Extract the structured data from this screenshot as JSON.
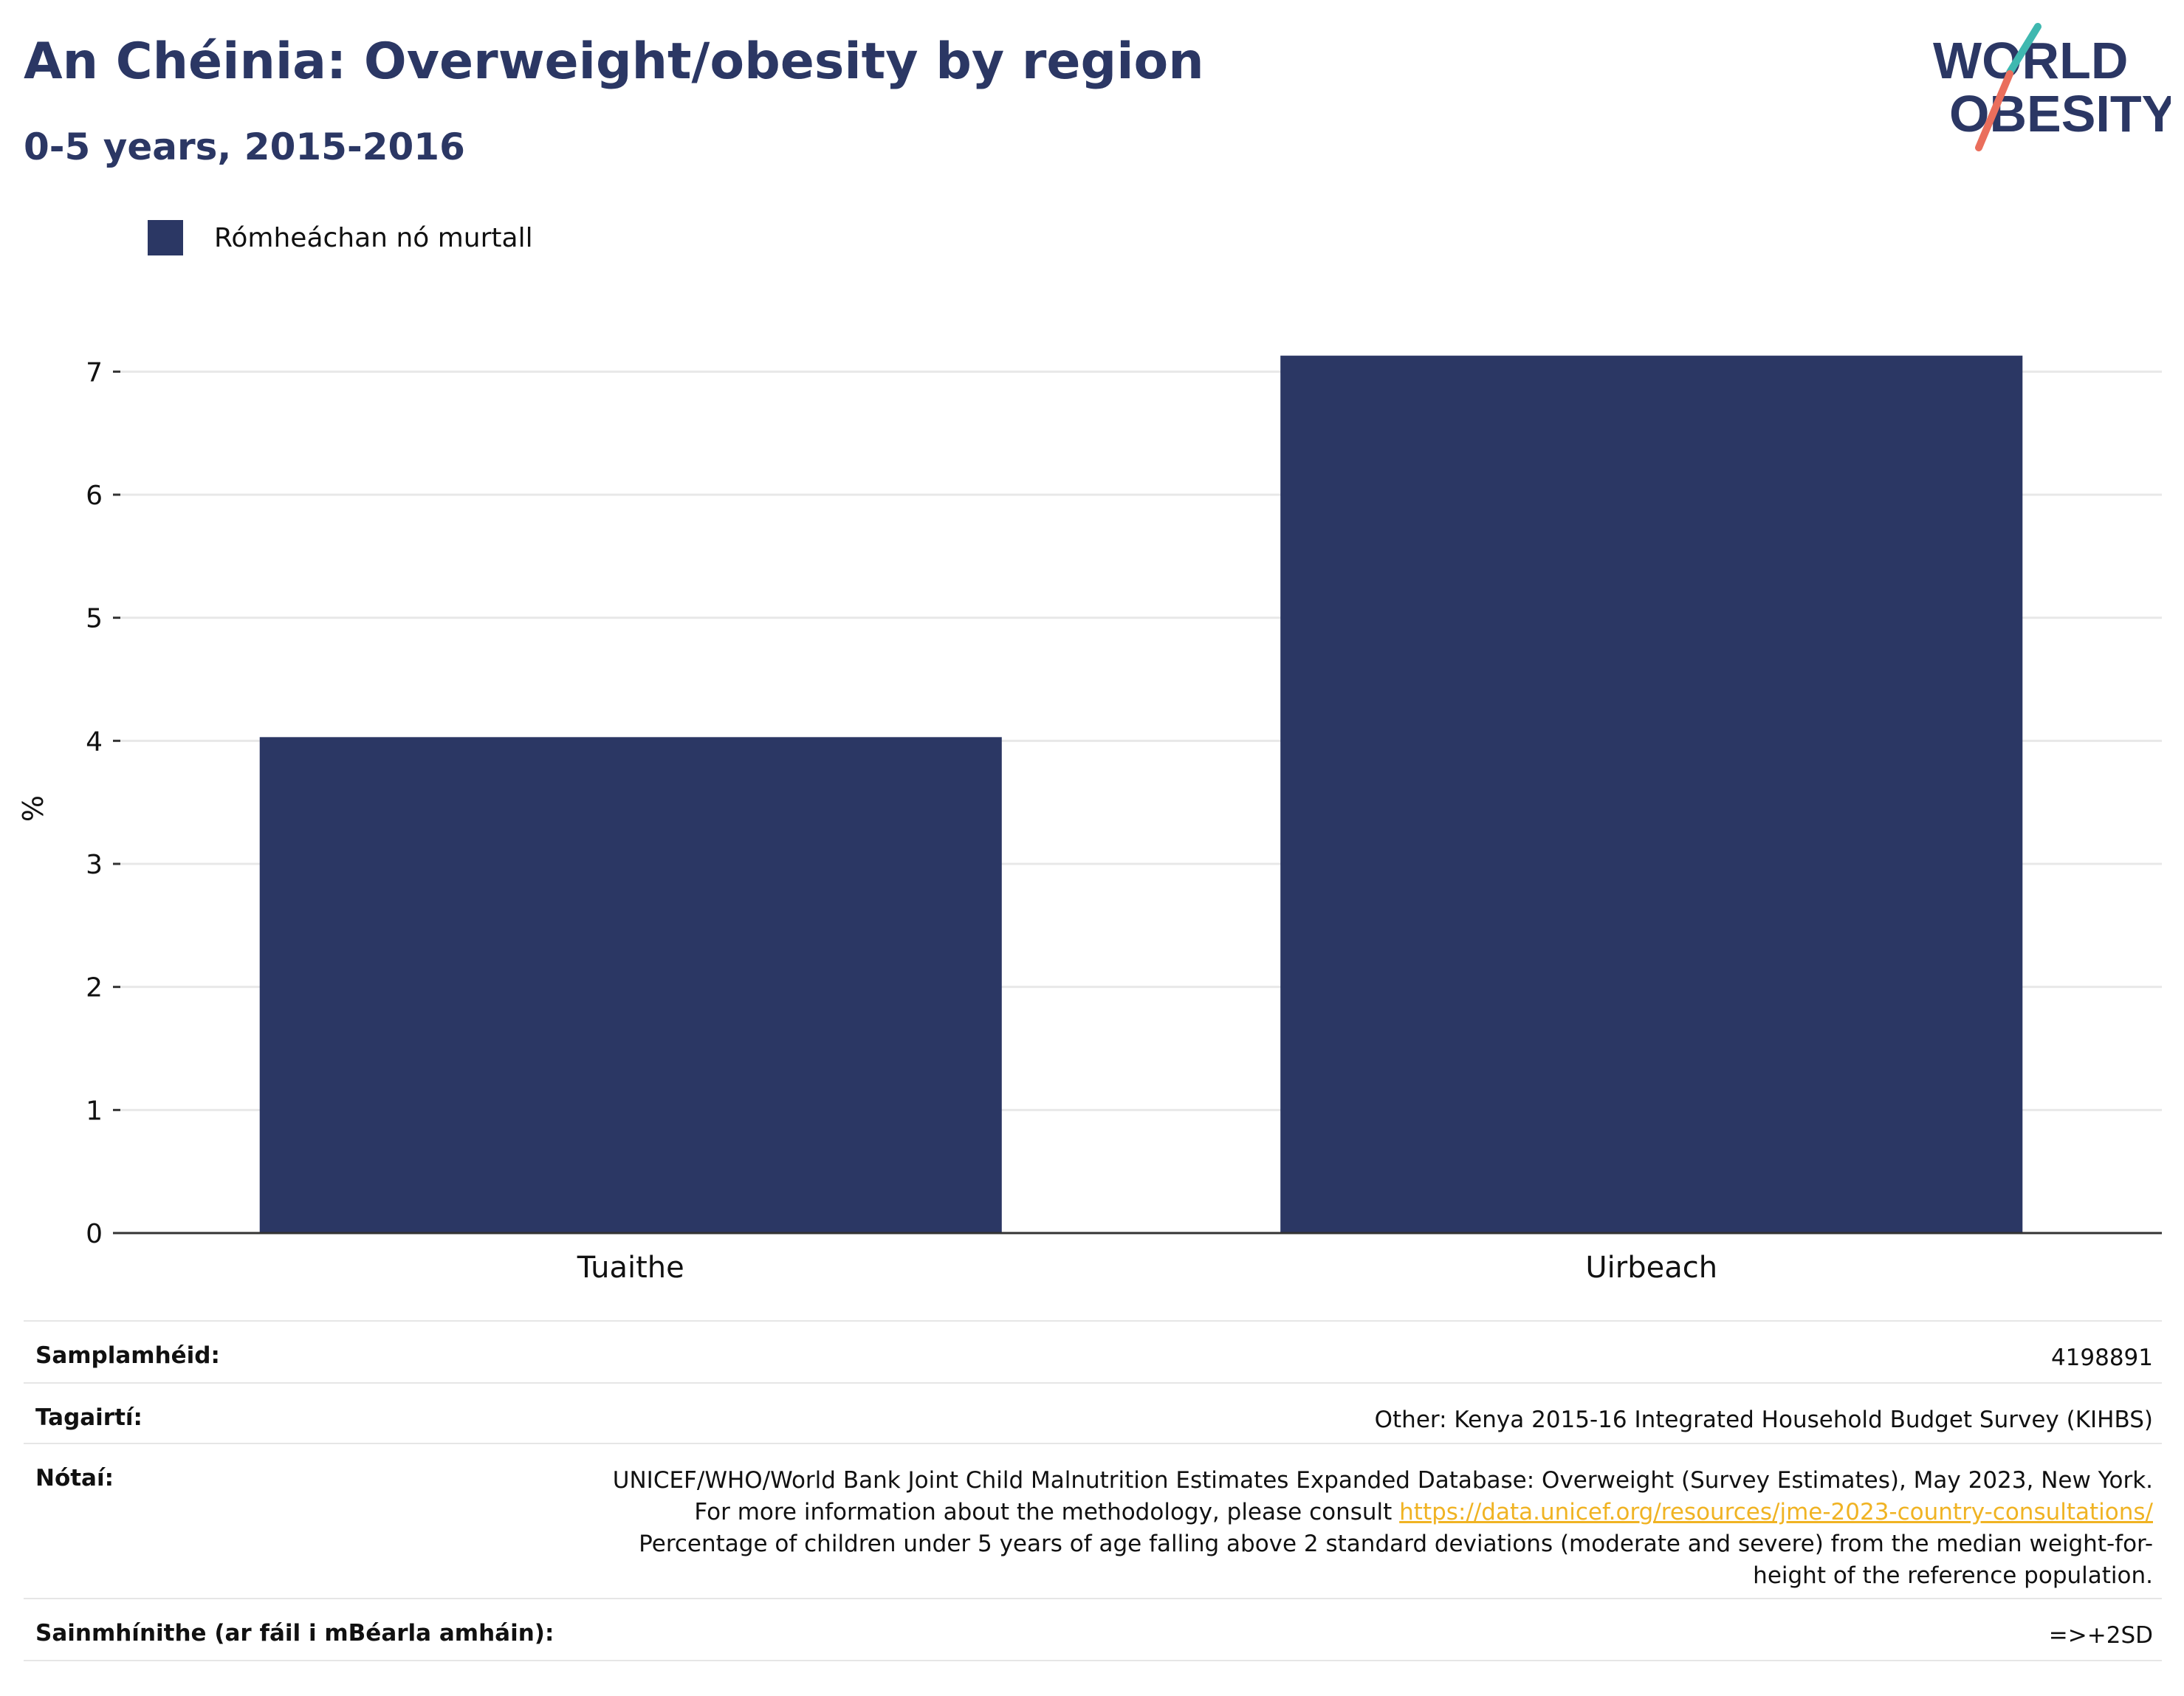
{
  "header": {
    "title": "An Chéinia: Overweight/obesity by region",
    "subtitle": "0-5 years, 2015-2016"
  },
  "logo": {
    "line1": "WORLD",
    "line2": "OBESITY",
    "colors": {
      "text": "#2b3764",
      "slash_top": "#3fb8b0",
      "slash_bottom": "#ea6e5c"
    }
  },
  "chart_data": {
    "type": "bar",
    "categories": [
      "Tuaithe",
      "Uirbeach"
    ],
    "series": [
      {
        "name": "Rómheáchan nó murtall",
        "values": [
          4.03,
          7.13
        ],
        "color": "#2b3764"
      }
    ],
    "ylabel": "%",
    "xlabel": "",
    "ylim": [
      0,
      7.5
    ],
    "yticks": [
      0,
      1,
      2,
      3,
      4,
      5,
      6,
      7
    ],
    "grid": true,
    "legend_position": "top-left"
  },
  "info": {
    "sample_label": "Samplamhéid:",
    "sample_value": "4198891",
    "refs_label": "Tagairtí:",
    "refs_value": "Other: Kenya 2015-16 Integrated Household Budget Survey (KIHBS)",
    "notes_label": "Nótaí:",
    "notes_text_1": "UNICEF/WHO/World Bank Joint Child Malnutrition Estimates Expanded Database: Overweight (Survey Estimates), May 2023, New York. For more information about the methodology, please consult ",
    "notes_link": "https://data.unicef.org/resources/jme-2023-country-consultations/",
    "notes_text_2": "Percentage of children under 5 years of age falling above 2 standard deviations (moderate and severe) from the median weight-for-height of the reference population.",
    "defs_label": "Sainmhínithe (ar fáil i mBéarla amháin):",
    "defs_value": "=>+2SD"
  }
}
